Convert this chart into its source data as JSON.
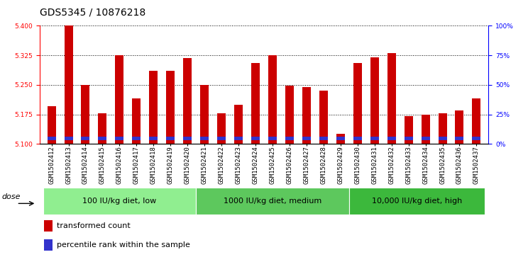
{
  "title": "GDS5345 / 10876218",
  "samples": [
    "GSM1502412",
    "GSM1502413",
    "GSM1502414",
    "GSM1502415",
    "GSM1502416",
    "GSM1502417",
    "GSM1502418",
    "GSM1502419",
    "GSM1502420",
    "GSM1502421",
    "GSM1502422",
    "GSM1502423",
    "GSM1502424",
    "GSM1502425",
    "GSM1502426",
    "GSM1502427",
    "GSM1502428",
    "GSM1502429",
    "GSM1502430",
    "GSM1502431",
    "GSM1502432",
    "GSM1502433",
    "GSM1502434",
    "GSM1502435",
    "GSM1502436",
    "GSM1502437"
  ],
  "red_values": [
    5.195,
    5.4,
    5.25,
    5.178,
    5.325,
    5.215,
    5.285,
    5.285,
    5.318,
    5.25,
    5.178,
    5.2,
    5.305,
    5.325,
    5.248,
    5.245,
    5.235,
    5.125,
    5.305,
    5.32,
    5.33,
    5.17,
    5.175,
    5.178,
    5.185,
    5.215
  ],
  "blue_heights": [
    0.009,
    0.008,
    0.008,
    0.008,
    0.008,
    0.008,
    0.009,
    0.009,
    0.008,
    0.008,
    0.008,
    0.008,
    0.009,
    0.009,
    0.009,
    0.008,
    0.009,
    0.008,
    0.009,
    0.009,
    0.008,
    0.008,
    0.009,
    0.008,
    0.009,
    0.009
  ],
  "base": 5.1,
  "ylim_left": [
    5.1,
    5.4
  ],
  "ylim_right": [
    0,
    100
  ],
  "yticks_left": [
    5.1,
    5.175,
    5.25,
    5.325,
    5.4
  ],
  "yticks_right": [
    0,
    25,
    50,
    75,
    100
  ],
  "ytick_right_labels": [
    "0%",
    "25%",
    "50%",
    "75%",
    "100%"
  ],
  "group_colors": [
    "#90EE90",
    "#5DC85D",
    "#3CB83C"
  ],
  "group_labels": [
    "100 IU/kg diet, low",
    "1000 IU/kg diet, medium",
    "10,000 IU/kg diet, high"
  ],
  "group_starts": [
    0,
    9,
    18
  ],
  "group_ends": [
    9,
    18,
    26
  ],
  "bar_width": 0.5,
  "red_color": "#CC0000",
  "blue_color": "#3333CC",
  "plot_bg": "#FFFFFF",
  "xtick_area_bg": "#D8D8D8",
  "fig_bg": "#FFFFFF",
  "legend_red": "transformed count",
  "legend_blue": "percentile rank within the sample",
  "dose_label": "dose",
  "title_fontsize": 10,
  "tick_fontsize": 6.5,
  "legend_fontsize": 8,
  "group_fontsize": 8
}
